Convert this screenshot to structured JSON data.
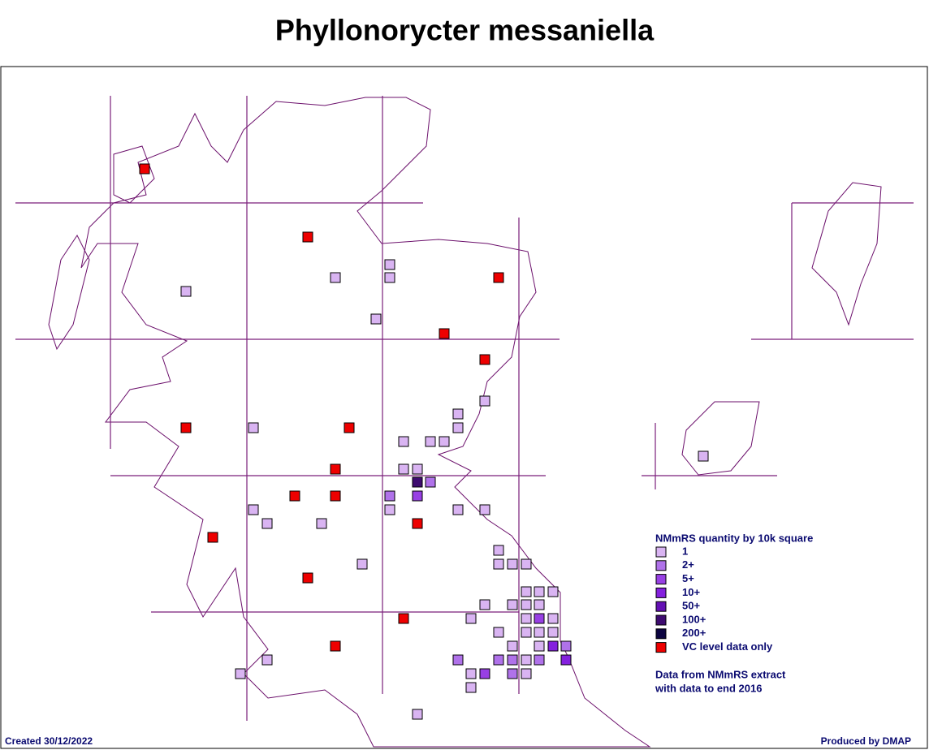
{
  "title": "Phyllonorycter messaniella",
  "legend": {
    "title": "NMmRS quantity by 10k square",
    "items": [
      {
        "label": "1",
        "color": "#d9b4f2"
      },
      {
        "label": "2+",
        "color": "#b072ea"
      },
      {
        "label": "5+",
        "color": "#9840e4"
      },
      {
        "label": "10+",
        "color": "#8420de"
      },
      {
        "label": "50+",
        "color": "#6410b4"
      },
      {
        "label": "100+",
        "color": "#3e0c70"
      },
      {
        "label": "200+",
        "color": "#0c0440"
      },
      {
        "label": "VC level data only",
        "color": "#ee0000"
      }
    ]
  },
  "note": [
    "Data from NMmRS extract",
    "with data to end 2016"
  ],
  "footer": {
    "created": "Created 30/12/2022",
    "produced": "Produced by DMAP"
  }
}
